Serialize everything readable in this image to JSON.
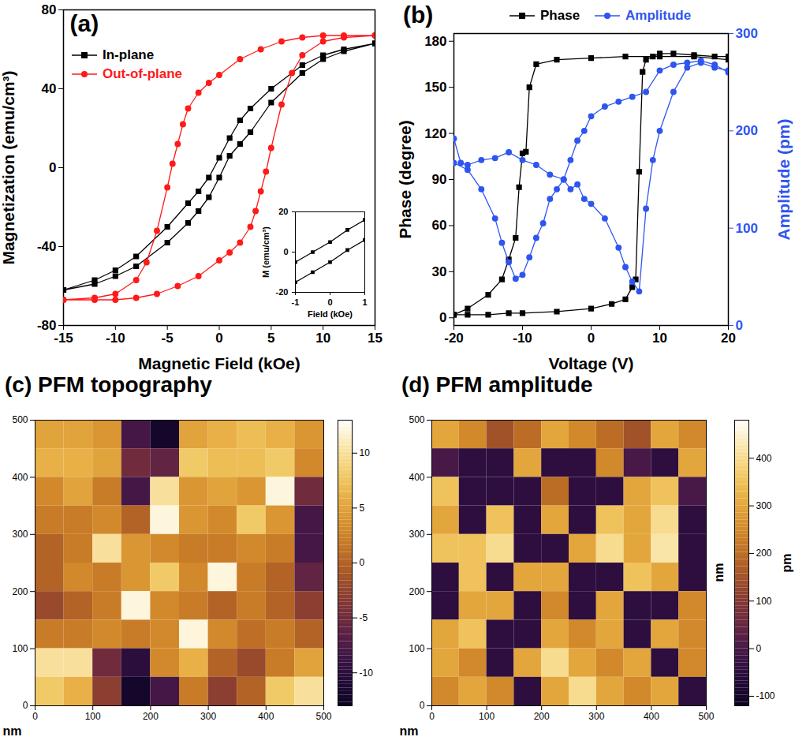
{
  "chart_data": [
    {
      "type": "line",
      "title": "(a)",
      "x_label": "Magnetic Field (kOe)",
      "y_label": "Magnetization (emu/cm³)",
      "xlim": [
        -15,
        15
      ],
      "xticks": [
        -15,
        -10,
        -5,
        0,
        5,
        10,
        15
      ],
      "ylim": [
        -80,
        80
      ],
      "yticks": [
        -80,
        -40,
        0,
        40,
        80
      ],
      "legend": "upper left",
      "series": [
        {
          "name": "In-plane",
          "color": "#000000",
          "marker": "square",
          "x": [
            15,
            12,
            10,
            8,
            5,
            3,
            2,
            1,
            0,
            -1,
            -2,
            -3,
            -5,
            -8,
            -10,
            -12,
            -15,
            -15,
            -12,
            -10,
            -8,
            -5,
            -3,
            -2,
            -1,
            0,
            1,
            2,
            3,
            5,
            8,
            10,
            12,
            15
          ],
          "values": [
            63,
            60,
            57,
            52,
            40,
            30,
            24,
            15,
            5,
            -5,
            -12,
            -18,
            -30,
            -45,
            -52,
            -57,
            -62,
            -62,
            -59,
            -55,
            -50,
            -38,
            -28,
            -22,
            -15,
            -5,
            6,
            12,
            18,
            33,
            48,
            55,
            59,
            63
          ]
        },
        {
          "name": "Out-of-plane",
          "color": "#ff1a1a",
          "marker": "circle",
          "x": [
            15,
            12,
            10,
            8,
            6,
            4,
            2,
            0,
            -1,
            -2,
            -3,
            -3.5,
            -4,
            -4.5,
            -5,
            -6,
            -7,
            -8,
            -10,
            -12,
            -15,
            -15,
            -12,
            -10,
            -8,
            -6,
            -4,
            -2,
            0,
            1,
            2,
            3,
            3.5,
            4,
            4.5,
            5,
            6,
            7,
            8,
            10,
            12,
            15
          ],
          "values": [
            67,
            67,
            67,
            66,
            64,
            60,
            55,
            47,
            43,
            38,
            30,
            22,
            12,
            2,
            -10,
            -32,
            -48,
            -57,
            -64,
            -66,
            -67,
            -67,
            -67,
            -67,
            -66,
            -64,
            -60,
            -55,
            -47,
            -43,
            -38,
            -30,
            -22,
            -12,
            -2,
            10,
            32,
            48,
            57,
            64,
            66,
            67
          ]
        }
      ],
      "inset": {
        "type": "line",
        "x_label": "Field (kOe)",
        "y_label": "M (emu/cm³)",
        "xlim": [
          -1,
          1
        ],
        "xticks": [
          -1,
          0,
          1
        ],
        "ylim": [
          -20,
          20
        ],
        "yticks": [
          -20,
          0,
          20
        ],
        "series": [
          {
            "color": "#000000",
            "marker": "square",
            "x": [
              1,
              0.5,
              0,
              -0.5,
              -1,
              -1,
              -1,
              -0.5,
              0,
              0.5,
              1
            ],
            "values": [
              16,
              11,
              5,
              0,
              -5,
              null,
              -15,
              -10,
              -5,
              1,
              6
            ]
          }
        ]
      }
    },
    {
      "type": "line",
      "title": "(b)",
      "x_label": "Voltage (V)",
      "y_label": "Phase (degree)",
      "y2_label": "Amplitude (pm)",
      "xlim": [
        -20,
        20
      ],
      "xticks": [
        -20,
        -10,
        0,
        10,
        20
      ],
      "ylim": [
        -5,
        185
      ],
      "yticks": [
        0,
        30,
        60,
        90,
        120,
        150,
        180
      ],
      "y2lim": [
        0,
        300
      ],
      "y2ticks": [
        0,
        100,
        200,
        300
      ],
      "legend": "top",
      "series": [
        {
          "name": "Phase",
          "color": "#000000",
          "marker": "square",
          "x": [
            -20,
            -18,
            -15,
            -12,
            -10,
            -5,
            0,
            3,
            5,
            6,
            6.5,
            7,
            7.5,
            8,
            9,
            10,
            12,
            15,
            18,
            20,
            20,
            15,
            10,
            5,
            0,
            -5,
            -8,
            -9,
            -9.5,
            -10,
            -10.5,
            -11,
            -12,
            -13,
            -15,
            -18,
            -20
          ],
          "values": [
            2,
            2,
            2,
            3,
            3,
            4,
            6,
            9,
            12,
            20,
            25,
            95,
            160,
            168,
            170,
            172,
            172,
            171,
            170,
            170,
            168,
            170,
            170,
            170,
            169,
            168,
            165,
            150,
            108,
            107,
            85,
            52,
            38,
            25,
            15,
            6,
            2
          ]
        },
        {
          "name": "Amplitude",
          "color": "#2f55f0",
          "marker": "circle",
          "axis": "y2",
          "x": [
            -20,
            -19,
            -18,
            -16,
            -14,
            -12,
            -10,
            -8,
            -6,
            -4,
            -3,
            -2,
            -1,
            0,
            2,
            4,
            5,
            6,
            7,
            8,
            9,
            10,
            12,
            14,
            16,
            18,
            20,
            20,
            18,
            16,
            14,
            12,
            10,
            8,
            6,
            4,
            2,
            0,
            -1,
            -2,
            -3,
            -4,
            -5,
            -6,
            -7,
            -8,
            -9,
            -10,
            -11,
            -12,
            -13,
            -14,
            -16,
            -18,
            -20
          ],
          "values": [
            192,
            167,
            165,
            170,
            172,
            178,
            170,
            165,
            155,
            150,
            140,
            145,
            130,
            125,
            110,
            80,
            60,
            45,
            35,
            120,
            170,
            200,
            240,
            265,
            270,
            265,
            262,
            260,
            268,
            272,
            270,
            268,
            262,
            240,
            235,
            230,
            225,
            215,
            200,
            190,
            170,
            150,
            140,
            130,
            105,
            90,
            70,
            52,
            48,
            65,
            85,
            110,
            140,
            160,
            167
          ]
        }
      ]
    },
    {
      "type": "heatmap",
      "title": "(c) PFM topography",
      "x_label": "nm",
      "xlim": [
        0,
        500
      ],
      "xticks": [
        0,
        100,
        200,
        300,
        400,
        500
      ],
      "ylim": [
        0,
        500
      ],
      "yticks": [
        0,
        100,
        200,
        300,
        400,
        500
      ],
      "x": [
        25,
        75,
        125,
        175,
        225,
        275,
        325,
        375,
        425,
        475
      ],
      "y": [
        475,
        425,
        375,
        325,
        275,
        225,
        175,
        125,
        75,
        25
      ],
      "z": [
        [
          5,
          5,
          4,
          -8,
          -12,
          5,
          6,
          7,
          6,
          4
        ],
        [
          6,
          6,
          5,
          -5,
          -6,
          8,
          7,
          7,
          8,
          3
        ],
        [
          3,
          5,
          2,
          -8,
          10,
          4,
          5,
          4,
          12,
          -5
        ],
        [
          2,
          2,
          3,
          0,
          12,
          4,
          3,
          8,
          4,
          -8
        ],
        [
          0,
          2,
          10,
          4,
          3,
          2,
          2,
          3,
          2,
          -8
        ],
        [
          0,
          3,
          2,
          4,
          8,
          3,
          12,
          2,
          0,
          -6
        ],
        [
          -2,
          0,
          2,
          12,
          3,
          2,
          0,
          2,
          0,
          -3
        ],
        [
          2,
          2,
          3,
          2,
          3,
          12,
          3,
          1,
          2,
          0
        ],
        [
          10,
          10,
          -5,
          -10,
          3,
          6,
          0,
          -2,
          2,
          5
        ],
        [
          8,
          6,
          -3,
          -12,
          -8,
          2,
          -3,
          0,
          8,
          10
        ]
      ],
      "zlim": [
        -13,
        13
      ],
      "zticks": [
        -10,
        -5,
        0,
        5,
        10
      ]
    },
    {
      "type": "heatmap",
      "title": "(d) PFM amplitude",
      "x_label": "nm",
      "y_label": "nm",
      "colorbar_label": "pm",
      "xlim": [
        0,
        500
      ],
      "xticks": [
        0,
        100,
        200,
        300,
        400,
        500
      ],
      "ylim": [
        0,
        500
      ],
      "yticks": [
        0,
        100,
        200,
        300,
        400,
        500
      ],
      "x": [
        25,
        75,
        125,
        175,
        225,
        275,
        325,
        375,
        425,
        475
      ],
      "y": [
        475,
        425,
        375,
        325,
        275,
        225,
        175,
        125,
        75,
        25
      ],
      "z": [
        [
          300,
          250,
          150,
          200,
          300,
          250,
          200,
          150,
          300,
          250
        ],
        [
          0,
          -50,
          -50,
          300,
          -50,
          -50,
          250,
          0,
          -50,
          300
        ],
        [
          350,
          -50,
          -50,
          -50,
          200,
          -50,
          -50,
          300,
          350,
          0
        ],
        [
          300,
          -50,
          350,
          -50,
          300,
          -50,
          350,
          300,
          400,
          -50
        ],
        [
          350,
          350,
          400,
          -50,
          -50,
          300,
          400,
          300,
          420,
          -50
        ],
        [
          -50,
          350,
          -50,
          300,
          300,
          -50,
          -50,
          350,
          300,
          -50
        ],
        [
          -50,
          300,
          300,
          -50,
          250,
          -50,
          300,
          -50,
          -50,
          250
        ],
        [
          300,
          350,
          -50,
          -50,
          300,
          250,
          300,
          -50,
          300,
          250
        ],
        [
          300,
          250,
          -50,
          300,
          400,
          300,
          250,
          300,
          -50,
          250
        ],
        [
          250,
          300,
          250,
          -50,
          300,
          400,
          300,
          250,
          300,
          -50
        ]
      ],
      "zlim": [
        -120,
        480
      ],
      "zticks": [
        -100,
        0,
        100,
        200,
        300,
        400
      ]
    }
  ]
}
